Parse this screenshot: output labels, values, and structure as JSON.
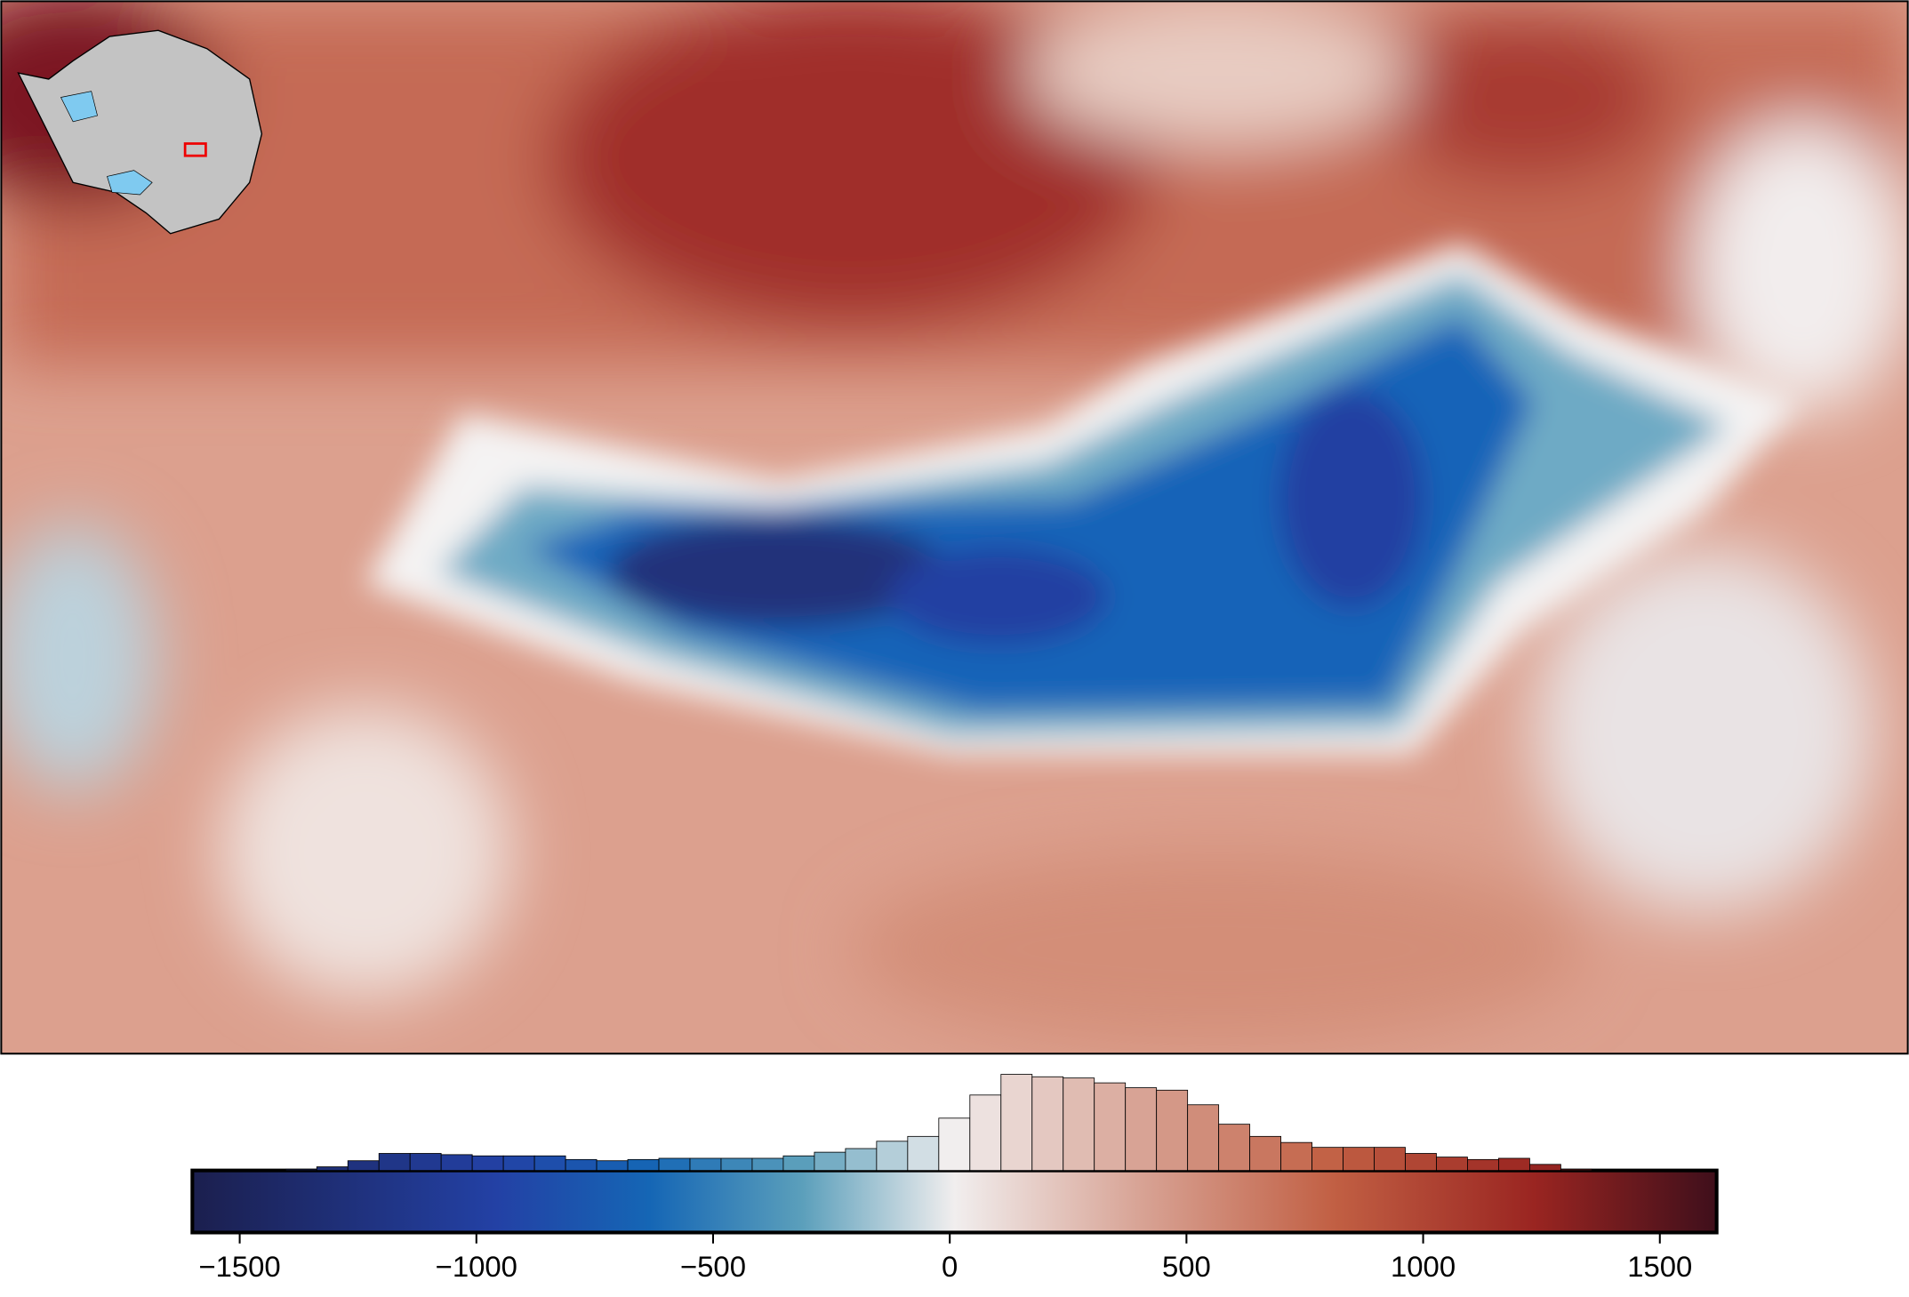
{
  "chart_data": {
    "type": "histogram",
    "bins": [
      -1600,
      -1534.3,
      -1468.6,
      -1402.9,
      -1337.2,
      -1271.5,
      -1205.8,
      -1140.1,
      -1074.4,
      -1008.7,
      -943,
      -877.3,
      -811.6,
      -745.9,
      -680.2,
      -614.5,
      -548.8,
      -483.1,
      -417.4,
      -351.7,
      -286,
      -220.3,
      -154.6,
      -88.9,
      -23.2,
      42.5,
      108.2,
      173.9,
      239.6,
      305.3,
      371,
      436.7,
      502.4,
      568.1,
      633.8,
      699.5,
      765.2,
      830.9,
      896.6,
      962.3,
      1028,
      1093.7,
      1159.4,
      1225.1,
      1290.8,
      1356.5,
      1422.2,
      1487.9,
      1553.6,
      1619.3
    ],
    "values": [
      0,
      0,
      0,
      1,
      3,
      8,
      14,
      14,
      13,
      12,
      12,
      12,
      9,
      8,
      9,
      10,
      10,
      10,
      10,
      12,
      15,
      18,
      24,
      28,
      43,
      62,
      79,
      77,
      76,
      72,
      68,
      66,
      54,
      38,
      28,
      23,
      19,
      19,
      19,
      14,
      11,
      9,
      10,
      5,
      1,
      0,
      0,
      0,
      0
    ],
    "xlim": [
      -1600,
      1620
    ],
    "xticks": [
      {
        "value": -1500,
        "label": "−1500"
      },
      {
        "value": -1000,
        "label": "−1000"
      },
      {
        "value": -500,
        "label": "−500"
      },
      0,
      500,
      1000,
      1500
    ]
  }
}
